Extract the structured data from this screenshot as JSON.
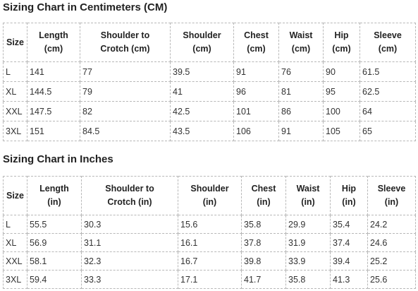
{
  "cm": {
    "title": "Sizing Chart in Centimeters (CM)",
    "headers": [
      [
        "Size"
      ],
      [
        "Length",
        "(cm)"
      ],
      [
        "Shoulder to",
        "Crotch (cm)"
      ],
      [
        "Shoulder",
        "(cm)"
      ],
      [
        "Chest",
        "(cm)"
      ],
      [
        "Waist",
        "(cm)"
      ],
      [
        "Hip",
        "(cm)"
      ],
      [
        "Sleeve",
        "(cm)"
      ]
    ],
    "rows": [
      [
        "L",
        "141",
        "77",
        "39.5",
        "91",
        "76",
        "90",
        "61.5"
      ],
      [
        "XL",
        "144.5",
        "79",
        "41",
        "96",
        "81",
        "95",
        "62.5"
      ],
      [
        "XXL",
        "147.5",
        "82",
        "42.5",
        "101",
        "86",
        "100",
        "64"
      ],
      [
        "3XL",
        "151",
        "84.5",
        "43.5",
        "106",
        "91",
        "105",
        "65"
      ]
    ]
  },
  "inches": {
    "title": "Sizing Chart in Inches",
    "headers": [
      [
        "Size"
      ],
      [
        "Length",
        "(in)"
      ],
      [
        "Shoulder to",
        "Crotch (in)"
      ],
      [
        "Shoulder",
        "(in)"
      ],
      [
        "Chest",
        "(in)"
      ],
      [
        "Waist",
        "(in)"
      ],
      [
        "Hip",
        "(in)"
      ],
      [
        "Sleeve",
        "(in)"
      ]
    ],
    "rows": [
      [
        "L",
        "55.5",
        "30.3",
        "15.6",
        "35.8",
        "29.9",
        "35.4",
        "24.2"
      ],
      [
        "XL",
        "56.9",
        "31.1",
        "16.1",
        "37.8",
        "31.9",
        "37.4",
        "24.6"
      ],
      [
        "XXL",
        "58.1",
        "32.3",
        "16.7",
        "39.8",
        "33.9",
        "39.4",
        "25.2"
      ],
      [
        "3XL",
        "59.4",
        "33.3",
        "17.1",
        "41.7",
        "35.8",
        "41.3",
        "25.6"
      ]
    ]
  }
}
